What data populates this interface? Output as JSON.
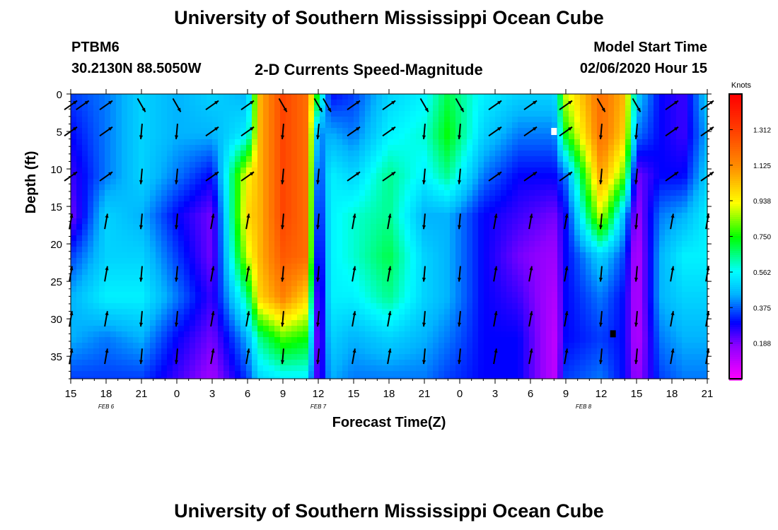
{
  "title_top": "University of Southern Mississippi Ocean Cube",
  "title_bottom": "University of Southern Mississippi Ocean Cube",
  "station": {
    "id": "PTBM6",
    "location": "30.2130N 88.5050W"
  },
  "plot_title": "2-D Currents Speed-Magnitude",
  "model_start": {
    "label": "Model Start Time",
    "value": "02/06/2020 Hour 15"
  },
  "chart_data": {
    "type": "heatmap",
    "title": "2-D Currents Speed-Magnitude",
    "xlabel": "Forecast Time(Z)",
    "ylabel": "Depth (ft)",
    "x_tick_labels": [
      "15",
      "18",
      "21",
      "0",
      "3",
      "6",
      "9",
      "12",
      "15",
      "18",
      "21",
      "0",
      "3",
      "6",
      "9",
      "12",
      "15",
      "18",
      "21"
    ],
    "date_labels": [
      {
        "label": "FEB 6",
        "tick_index": 1
      },
      {
        "label": "FEB 7",
        "tick_index": 7
      },
      {
        "label": "FEB 8",
        "tick_index": 14.5
      }
    ],
    "y_ticks": [
      0,
      5,
      10,
      15,
      20,
      25,
      30,
      35
    ],
    "ylim": [
      0,
      38
    ],
    "xlim_hours_from_start": [
      0,
      54
    ],
    "colorbar": {
      "unit": "Knots",
      "ticks": [
        "1.312",
        "1.125",
        "0.938",
        "0.750",
        "0.562",
        "0.375",
        "0.188"
      ],
      "tick_values": [
        1.312,
        1.125,
        0.938,
        0.75,
        0.562,
        0.375,
        0.188
      ],
      "range": [
        0.0,
        1.5
      ]
    },
    "speed_profiles": [
      {
        "hour": 0,
        "speed": [
          0.35,
          0.3,
          0.25,
          0.2,
          0.35,
          0.45,
          0.45,
          0.35
        ]
      },
      {
        "hour": 3,
        "speed": [
          0.4,
          0.4,
          0.4,
          0.5,
          0.5,
          0.55,
          0.4,
          0.35
        ]
      },
      {
        "hour": 6,
        "speed": [
          0.5,
          0.5,
          0.5,
          0.45,
          0.5,
          0.55,
          0.45,
          0.35
        ]
      },
      {
        "hour": 9,
        "speed": [
          0.45,
          0.45,
          0.4,
          0.3,
          0.35,
          0.4,
          0.3,
          0.25
        ]
      },
      {
        "hour": 12,
        "speed": [
          0.5,
          0.45,
          0.3,
          0.2,
          0.2,
          0.25,
          0.2,
          0.15
        ]
      },
      {
        "hour": 15,
        "speed": [
          0.45,
          0.55,
          0.95,
          1.0,
          0.9,
          0.65,
          0.45,
          0.35
        ]
      },
      {
        "hour": 16,
        "speed": [
          1.05,
          1.05,
          1.05,
          1.05,
          1.05,
          1.0,
          0.65,
          0.5
        ]
      },
      {
        "hour": 18,
        "speed": [
          1.3,
          1.3,
          1.3,
          1.3,
          1.25,
          1.15,
          0.8,
          0.55
        ]
      },
      {
        "hour": 20,
        "speed": [
          1.2,
          1.2,
          1.2,
          1.2,
          1.2,
          1.0,
          0.75,
          0.55
        ]
      },
      {
        "hour": 21,
        "speed": [
          0.7,
          0.4,
          0.3,
          0.25,
          0.2,
          0.15,
          0.15,
          0.2
        ]
      },
      {
        "hour": 22,
        "speed": [
          0.3,
          0.45,
          0.55,
          0.55,
          0.55,
          0.55,
          0.5,
          0.45
        ]
      },
      {
        "hour": 24,
        "speed": [
          0.35,
          0.4,
          0.5,
          0.6,
          0.6,
          0.55,
          0.45,
          0.4
        ]
      },
      {
        "hour": 27,
        "speed": [
          0.5,
          0.55,
          0.65,
          0.65,
          0.7,
          0.65,
          0.5,
          0.4
        ]
      },
      {
        "hour": 30,
        "speed": [
          0.55,
          0.6,
          0.55,
          0.45,
          0.5,
          0.5,
          0.45,
          0.4
        ]
      },
      {
        "hour": 32,
        "speed": [
          0.7,
          0.75,
          0.65,
          0.45,
          0.45,
          0.45,
          0.4,
          0.35
        ]
      },
      {
        "hour": 35,
        "speed": [
          0.55,
          0.5,
          0.4,
          0.3,
          0.3,
          0.3,
          0.3,
          0.3
        ]
      },
      {
        "hour": 38,
        "speed": [
          0.5,
          0.4,
          0.3,
          0.25,
          0.2,
          0.25,
          0.3,
          0.3
        ]
      },
      {
        "hour": 41,
        "speed": [
          0.5,
          0.4,
          0.3,
          0.2,
          0.15,
          0.12,
          0.1,
          0.1
        ]
      },
      {
        "hour": 42,
        "speed": [
          0.9,
          0.75,
          0.4,
          0.3,
          0.3,
          0.3,
          0.3,
          0.35
        ]
      },
      {
        "hour": 45,
        "speed": [
          1.2,
          1.2,
          1.1,
          0.9,
          0.5,
          0.4,
          0.35,
          0.4
        ]
      },
      {
        "hour": 47,
        "speed": [
          1.05,
          1.0,
          0.8,
          0.45,
          0.35,
          0.3,
          0.3,
          0.3
        ]
      },
      {
        "hour": 48,
        "speed": [
          0.5,
          0.4,
          0.2,
          0.15,
          0.1,
          0.1,
          0.1,
          0.15
        ]
      },
      {
        "hour": 50,
        "speed": [
          0.3,
          0.3,
          0.3,
          0.4,
          0.45,
          0.45,
          0.4,
          0.35
        ]
      },
      {
        "hour": 52,
        "speed": [
          0.25,
          0.25,
          0.3,
          0.45,
          0.55,
          0.5,
          0.45,
          0.4
        ]
      },
      {
        "hour": 54,
        "speed": [
          0.5,
          0.45,
          0.5,
          0.55,
          0.55,
          0.5,
          0.45,
          0.4
        ]
      }
    ],
    "vector_rows": [
      {
        "depth": 1.5,
        "hours": [
          0,
          1,
          3,
          6,
          9,
          12,
          15,
          18,
          21,
          21.75,
          24,
          27,
          30,
          33,
          36,
          39,
          42,
          45,
          48,
          51,
          54
        ]
      },
      {
        "depth": 5,
        "hours": [
          0,
          3,
          6,
          9,
          12,
          15,
          18,
          21,
          24,
          27,
          30,
          33,
          36,
          39,
          42,
          45,
          48,
          51,
          54
        ]
      },
      {
        "depth": 11,
        "hours": [
          0,
          3,
          6,
          9,
          12,
          15,
          18,
          21,
          24,
          27,
          30,
          33,
          36,
          39,
          42,
          45,
          48,
          51,
          54
        ]
      },
      {
        "depth": 17,
        "hours": [
          0,
          3,
          6,
          9,
          12,
          15,
          18,
          21,
          24,
          27,
          30,
          33,
          36,
          39,
          42,
          45,
          48,
          51,
          54
        ]
      },
      {
        "depth": 24,
        "hours": [
          0,
          3,
          6,
          9,
          12,
          15,
          18,
          21,
          24,
          27,
          30,
          33,
          36,
          39,
          42,
          45,
          48,
          51,
          54
        ]
      },
      {
        "depth": 30,
        "hours": [
          0,
          3,
          6,
          9,
          12,
          15,
          18,
          21,
          24,
          27,
          30,
          33,
          36,
          39,
          42,
          45,
          48,
          51,
          54
        ]
      },
      {
        "depth": 35,
        "hours": [
          0,
          3,
          6,
          9,
          12,
          15,
          18,
          21,
          24,
          27,
          30,
          33,
          36,
          39,
          42,
          45,
          48,
          51,
          54
        ]
      }
    ],
    "markers": [
      {
        "hour": 41,
        "depth": 5,
        "color": "#ffffff"
      },
      {
        "hour": 46,
        "depth": 32,
        "color": "#000000"
      }
    ]
  }
}
